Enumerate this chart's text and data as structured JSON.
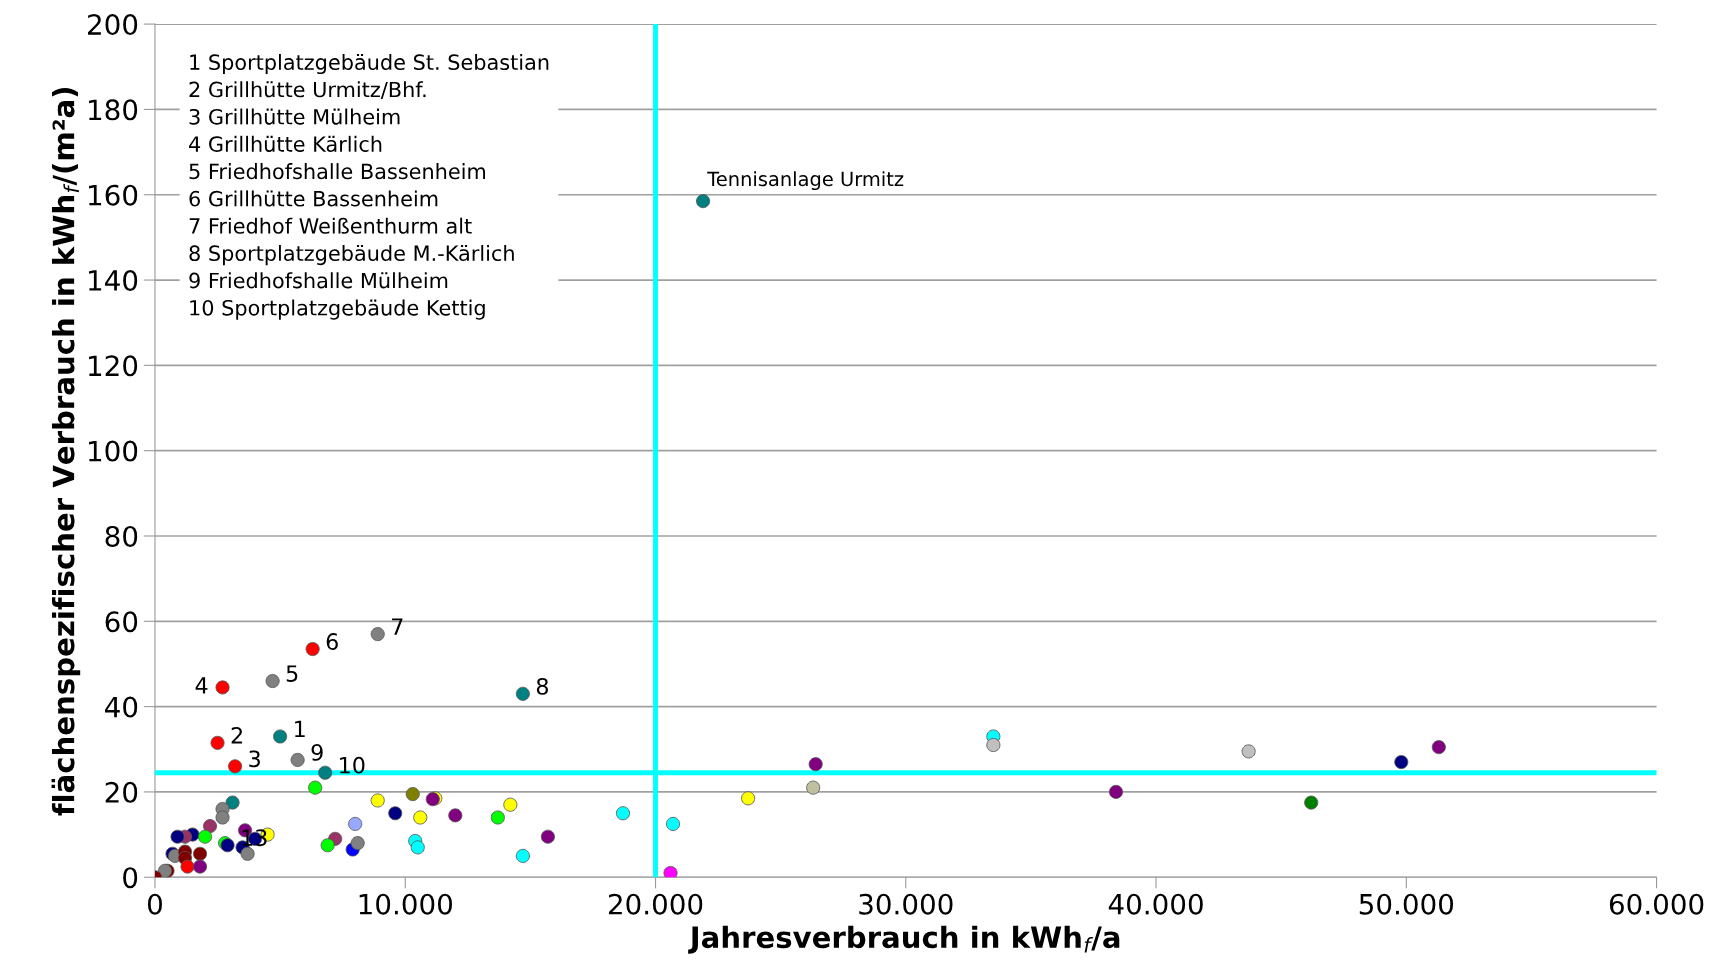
{
  "chart_data": {
    "type": "scatter",
    "xlabel": "Jahresverbrauch in kWh$_{f}$/a",
    "ylabel": "flächenspezifischer Verbrauch in kWh$_{f}$/(m²a)",
    "x": [
      5000,
      2500,
      3200,
      2700,
      4700,
      6300,
      8900,
      14700,
      5700,
      6800,
      21900,
      33500,
      33500,
      43700,
      51300,
      49800,
      26400,
      26300,
      38400,
      46200,
      23700,
      18700,
      20700,
      20600,
      14700,
      15700,
      6400,
      8900,
      10300,
      11200,
      11100,
      9600,
      10600,
      12000,
      13700,
      14200,
      8000,
      7200,
      6900,
      7900,
      8100,
      10400,
      10500,
      3100,
      2700,
      2700,
      2200,
      1500,
      1200,
      900,
      2000,
      3600,
      4500,
      4000,
      2800,
      2900,
      3500,
      3700,
      700,
      800,
      1200,
      1200,
      1800,
      1300,
      1800,
      500,
      400,
      0
    ],
    "values": [
      33,
      31.5,
      26,
      44.5,
      46,
      53.5,
      57,
      43,
      27.5,
      24.5,
      158.5,
      33,
      31,
      29.5,
      30.5,
      27,
      26.5,
      21,
      20,
      17.5,
      18.5,
      15,
      12.5,
      1,
      5,
      9.5,
      21,
      18,
      19.5,
      18.5,
      18.3,
      15,
      14,
      14.5,
      14,
      17,
      12.5,
      9,
      7.5,
      6.5,
      8,
      8.5,
      7,
      17.5,
      16,
      14,
      12,
      10,
      9.5,
      9.5,
      9.5,
      11,
      10,
      9,
      8,
      7.5,
      7,
      5.5,
      5.5,
      5,
      6,
      4.5,
      5.5,
      2.5,
      2.5,
      1.5,
      1.5,
      0
    ],
    "colors": [
      "#008080",
      "#ff0000",
      "#ff0000",
      "#ff0000",
      "#808080",
      "#ff0000",
      "#808080",
      "#008080",
      "#808080",
      "#008080",
      "#008080",
      "#00ffff",
      "#c0c0c0",
      "#c0c0c0",
      "#800080",
      "#000080",
      "#800080",
      "#c0c0a0",
      "#800080",
      "#008000",
      "#ffff00",
      "#00ffff",
      "#00ffff",
      "#ff00ff",
      "#00ffff",
      "#800080",
      "#00ff00",
      "#ffff00",
      "#808000",
      "#ffff00",
      "#800080",
      "#000080",
      "#ffff00",
      "#800080",
      "#00ff00",
      "#ffff00",
      "#99a8ff",
      "#993366",
      "#00ff00",
      "#0000ff",
      "#808080",
      "#00ffff",
      "#00ffff",
      "#008080",
      "#808080",
      "#808080",
      "#993366",
      "#000080",
      "#993366",
      "#000080",
      "#00ff00",
      "#800080",
      "#ffff00",
      "#000080",
      "#00ff00",
      "#000080",
      "#000080",
      "#808080",
      "#000080",
      "#808080",
      "#800000",
      "#800000",
      "#800000",
      "#ff0000",
      "#800080",
      "#800000",
      "#808080",
      "#800000"
    ],
    "marker": "circle",
    "xlim": [
      0,
      60000
    ],
    "ylim": [
      0,
      200
    ],
    "xticks": [
      0,
      {
        "value": 10000,
        "label": "10.000"
      },
      {
        "value": 20000,
        "label": "20.000"
      },
      {
        "value": 30000,
        "label": "30.000"
      },
      {
        "value": 40000,
        "label": "40.000"
      },
      {
        "value": 50000,
        "label": "50.000"
      },
      {
        "value": 60000,
        "label": "60.000"
      }
    ],
    "yticks": [
      0,
      20,
      40,
      60,
      80,
      100,
      120,
      140,
      160,
      180,
      200
    ],
    "grid": "y",
    "ref_lines": [
      {
        "axis": "x",
        "value": 20000,
        "color": "#00ffff"
      },
      {
        "axis": "y",
        "value": 24.5,
        "color": "#00ffff"
      }
    ],
    "annotations": [
      {
        "text": "1",
        "x": 5000,
        "y": 33
      },
      {
        "text": "2",
        "x": 2500,
        "y": 31.5
      },
      {
        "text": "3",
        "x": 3200,
        "y": 26
      },
      {
        "text": "4",
        "x": 2700,
        "y": 44.5
      },
      {
        "text": "5",
        "x": 4700,
        "y": 46
      },
      {
        "text": "6",
        "x": 6300,
        "y": 53.5
      },
      {
        "text": "7",
        "x": 8900,
        "y": 57
      },
      {
        "text": "8",
        "x": 14700,
        "y": 43
      },
      {
        "text": "9",
        "x": 5700,
        "y": 27.5
      },
      {
        "text": "10",
        "x": 6800,
        "y": 24.5
      },
      {
        "text": "13",
        "x": 2900,
        "y": 7.5
      },
      {
        "text": "Tennisanlage Urmitz",
        "x": 21900,
        "y": 158.5
      },
      "1 Sportplatzgebäude St. Sebastian\n2 Grillhütte Urmitz/Bhf.\n3 Grillhütte Mülheim\n4 Grillhütte Kärlich\n5 Friedhofshalle Bassenheim\n6 Grillhütte Bassenheim\n7 Friedhof Weißenthurm alt\n8 Sportplatzgebäude M.-Kärlich\n9 Friedhofshalle Mülheim\n10 Sportplatzgebäude Kettig"
    ]
  }
}
